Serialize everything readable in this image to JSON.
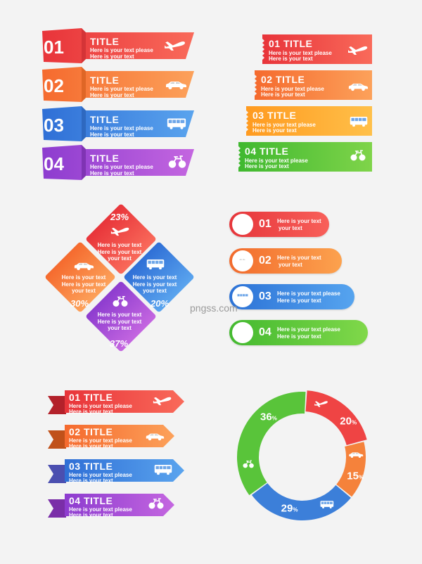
{
  "colors": {
    "red": "#ef4444",
    "orange": "#f5823b",
    "yellow": "#ffa530",
    "blue": "#3c7fd9",
    "purple": "#a24ad2",
    "green": "#59c43a"
  },
  "icons": [
    "plane-icon",
    "car-icon",
    "bus-icon",
    "bicycle-icon"
  ],
  "set1": {
    "items": [
      {
        "num": "01",
        "title": "TITLE",
        "line1": "Here is your text please",
        "line2": "Here is your text"
      },
      {
        "num": "02",
        "title": "TITLE",
        "line1": "Here is your text please",
        "line2": "Here is your text"
      },
      {
        "num": "03",
        "title": "TITLE",
        "line1": "Here is your text please",
        "line2": "Here is your text"
      },
      {
        "num": "04",
        "title": "TITLE",
        "line1": "Here is your text please",
        "line2": "Here is your text"
      }
    ]
  },
  "set2": {
    "items": [
      {
        "num": "01",
        "title": "TITLE",
        "line1": "Here is your text please",
        "line2": "Here is your text"
      },
      {
        "num": "02",
        "title": "TITLE",
        "line1": "Here is your text please",
        "line2": "Here is your text"
      },
      {
        "num": "03",
        "title": "TITLE",
        "line1": "Here is your text please",
        "line2": "Here is your text"
      },
      {
        "num": "04",
        "title": "TITLE",
        "line1": "Here is your text please",
        "line2": "Here is your text"
      }
    ]
  },
  "diamond": {
    "top": {
      "pct": "23%",
      "l1": "Here is your text",
      "l2": "Here is your text",
      "l3": "your text"
    },
    "left": {
      "pct": "30%",
      "l1": "Here is your text",
      "l2": "Here is your text",
      "l3": "your text"
    },
    "right": {
      "pct": "20%",
      "l1": "Here is your text",
      "l2": "Here is your text",
      "l3": "your text"
    },
    "bottom": {
      "pct": "37%",
      "l1": "Here is your text",
      "l2": "Here is your text",
      "l3": "your text"
    }
  },
  "pills": {
    "items": [
      {
        "num": "01",
        "line1": "Here is your text",
        "line2": "your text"
      },
      {
        "num": "02",
        "line1": "Here is your text",
        "line2": "your text"
      },
      {
        "num": "03",
        "line1": "Here is your text please",
        "line2": "Here is your text"
      },
      {
        "num": "04",
        "line1": "Here is your text please",
        "line2": "Here is your text"
      }
    ]
  },
  "watermark": "pngss.com",
  "set3": {
    "items": [
      {
        "num": "01",
        "title": "TITLE",
        "line1": "Here is your text please",
        "line2": "Here is your text"
      },
      {
        "num": "02",
        "title": "TITLE",
        "line1": "Here is your text please",
        "line2": "Here is your text"
      },
      {
        "num": "03",
        "title": "TITLE",
        "line1": "Here is your text please",
        "line2": "Here is your text"
      },
      {
        "num": "04",
        "title": "TITLE",
        "line1": "Here is your text please",
        "line2": "Here is your text"
      }
    ]
  },
  "chart_data": {
    "type": "pie",
    "style": "donut",
    "slices": [
      {
        "value": 20,
        "label": "20",
        "unit": "%",
        "color": "#ef4444",
        "icon": "plane-icon"
      },
      {
        "value": 15,
        "label": "15",
        "unit": "%",
        "color": "#f5823b",
        "icon": "car-icon"
      },
      {
        "value": 29,
        "label": "29",
        "unit": "%",
        "color": "#3c7fd9",
        "icon": "bus-icon"
      },
      {
        "value": 36,
        "label": "36",
        "unit": "%",
        "color": "#59c43a",
        "icon": "bicycle-icon"
      }
    ]
  }
}
